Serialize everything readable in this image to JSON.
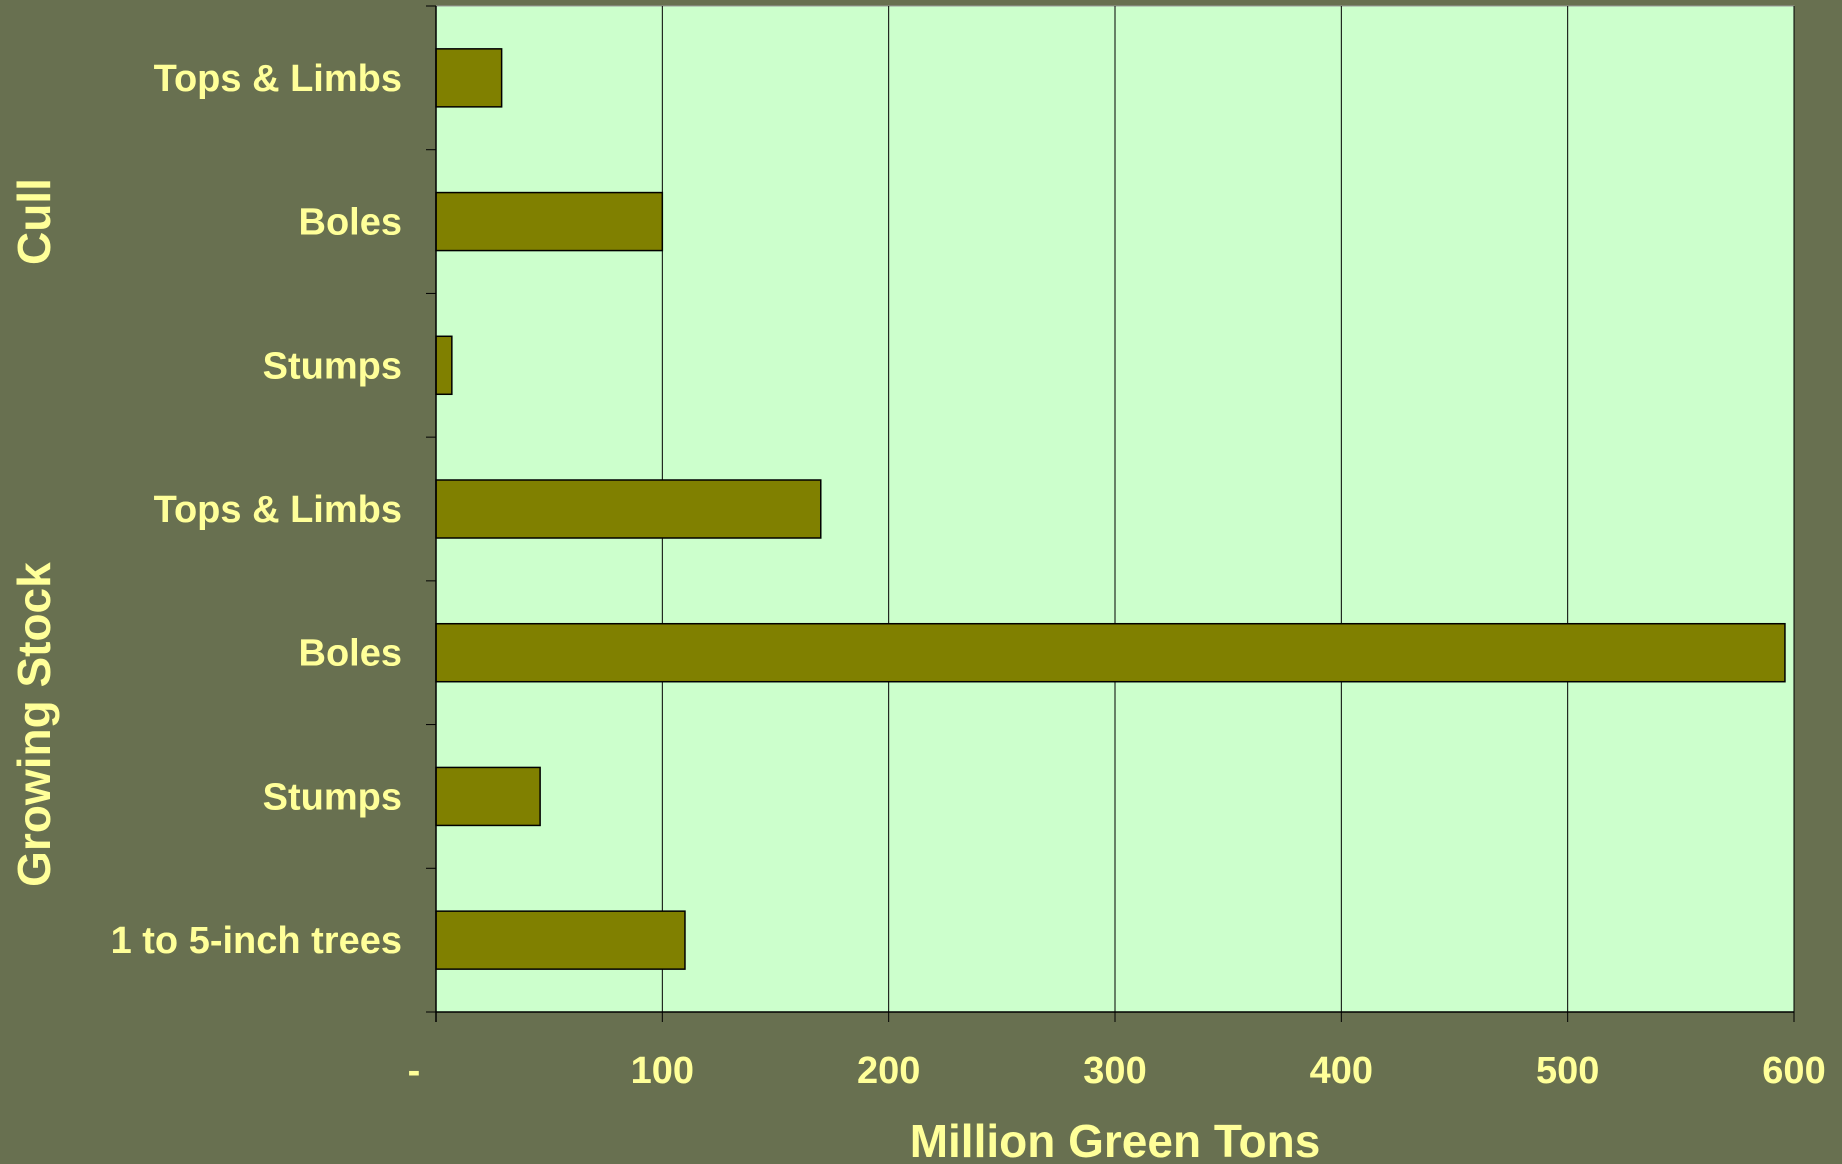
{
  "chart_data": {
    "type": "bar",
    "orientation": "horizontal",
    "categories": [
      "Tops & Limbs",
      "Boles",
      "Stumps",
      "Tops & Limbs",
      "Boles",
      "Stumps",
      "1 to 5-inch trees"
    ],
    "groups": [
      {
        "name": "Cull",
        "categories": [
          "Tops & Limbs",
          "Boles",
          "Stumps"
        ]
      },
      {
        "name": "Growing Stock",
        "categories": [
          "Tops & Limbs",
          "Boles",
          "Stumps",
          "1 to 5-inch trees"
        ]
      }
    ],
    "values": [
      29,
      100,
      7,
      170,
      596,
      46,
      110
    ],
    "xlabel": "Million Green Tons",
    "ylabel": "",
    "xlim": [
      0,
      600
    ],
    "xticks": [
      0,
      100,
      200,
      300,
      400,
      500,
      600
    ],
    "xtick_labels": [
      "-",
      "100",
      "200",
      "300",
      "400",
      "500",
      "600"
    ],
    "grid": "vertical",
    "legend": "none"
  },
  "colors": {
    "background": "#687050",
    "plot_area": "#ccffcc",
    "bar_fill": "#808000",
    "bar_stroke": "#000000",
    "text": "#ffff99",
    "grid": "#000000"
  }
}
